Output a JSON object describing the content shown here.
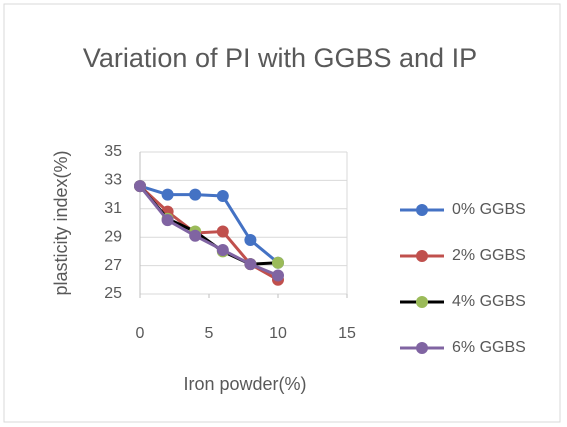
{
  "chart_data": {
    "type": "line",
    "title": "Variation of PI with GGBS and IP",
    "x_label": "Iron powder(%)",
    "y_label": "plasticity index(%)",
    "x": [
      0,
      2,
      4,
      6,
      8,
      10
    ],
    "series": [
      {
        "name": "0% GGBS",
        "color": "#4472c4",
        "marker_color": "#4472c4",
        "values": [
          32.6,
          32.0,
          32.0,
          31.9,
          28.8,
          27.2
        ]
      },
      {
        "name": "2% GGBS",
        "color": "#c0504d",
        "marker_color": "#c0504d",
        "values": [
          32.6,
          30.8,
          29.3,
          29.4,
          27.1,
          26.0
        ]
      },
      {
        "name": "4% GGBS",
        "color": "#000000",
        "marker_color": "#9bbb59",
        "values": [
          32.6,
          30.3,
          29.4,
          28.0,
          27.1,
          27.2
        ]
      },
      {
        "name": "6% GGBS",
        "color": "#8064a2",
        "marker_color": "#8064a2",
        "values": [
          32.6,
          30.2,
          29.1,
          28.1,
          27.1,
          26.3
        ]
      }
    ],
    "xlim": [
      0,
      15
    ],
    "xticks": [
      0,
      5,
      10,
      15
    ],
    "ylim": [
      25,
      35
    ],
    "yticks": [
      25,
      27,
      29,
      31,
      33,
      35
    ],
    "grid": true,
    "legend": "right"
  }
}
